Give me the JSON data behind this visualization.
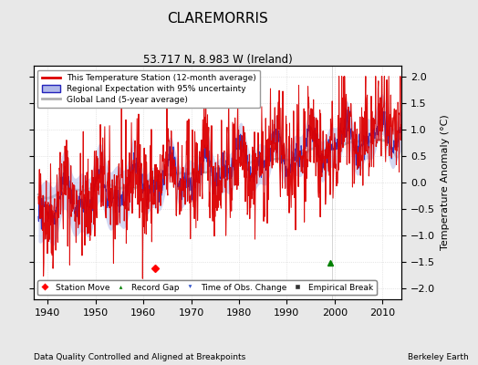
{
  "title": "CLAREMORRIS",
  "subtitle": "53.717 N, 8.983 W (Ireland)",
  "xlabel_note": "Data Quality Controlled and Aligned at Breakpoints",
  "xlabel_right": "Berkeley Earth",
  "ylabel": "Temperature Anomaly (°C)",
  "xlim": [
    1937,
    2014
  ],
  "ylim": [
    -2.2,
    2.2
  ],
  "yticks": [
    -2,
    -1.5,
    -1,
    -0.5,
    0,
    0.5,
    1,
    1.5,
    2
  ],
  "xticks": [
    1940,
    1950,
    1960,
    1970,
    1980,
    1990,
    2000,
    2010
  ],
  "background_color": "#e8e8e8",
  "plot_bg_color": "#ffffff",
  "station_color": "#dd0000",
  "regional_color": "#2222bb",
  "regional_fill_color": "#b0b8e8",
  "global_color": "#b0b0b0",
  "seed": 42
}
